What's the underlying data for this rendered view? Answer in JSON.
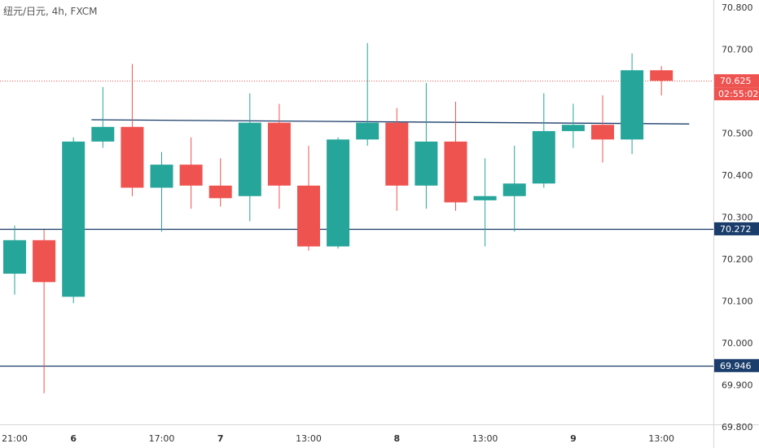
{
  "chart_header": {
    "symbol_label": "纽元/日元, 4h, FXCM"
  },
  "chart_data": {
    "type": "candlestick",
    "timeframe": "4h",
    "ylim": [
      69.8,
      70.8
    ],
    "y_ticks": [
      "70.800",
      "70.700",
      "70.600",
      "70.500",
      "70.400",
      "70.300",
      "70.200",
      "70.100",
      "70.000",
      "69.900",
      "69.800"
    ],
    "x_ticks": [
      {
        "label": "21:00",
        "i": 0
      },
      {
        "label": "6",
        "i": 2,
        "bold": true
      },
      {
        "label": "17:00",
        "i": 5
      },
      {
        "label": "7",
        "i": 7,
        "bold": true
      },
      {
        "label": "13:00",
        "i": 10
      },
      {
        "label": "8",
        "i": 13,
        "bold": true
      },
      {
        "label": "13:00",
        "i": 16
      },
      {
        "label": "9",
        "i": 19,
        "bold": true
      },
      {
        "label": "13:00",
        "i": 22
      }
    ],
    "candles": [
      {
        "o": 70.165,
        "h": 70.28,
        "l": 70.115,
        "c": 70.245
      },
      {
        "o": 70.245,
        "h": 70.27,
        "l": 69.88,
        "c": 70.145
      },
      {
        "o": 70.11,
        "h": 70.49,
        "l": 70.095,
        "c": 70.48
      },
      {
        "o": 70.48,
        "h": 70.61,
        "l": 70.465,
        "c": 70.515
      },
      {
        "o": 70.515,
        "h": 70.665,
        "l": 70.35,
        "c": 70.37
      },
      {
        "o": 70.37,
        "h": 70.455,
        "l": 70.265,
        "c": 70.425
      },
      {
        "o": 70.425,
        "h": 70.49,
        "l": 70.32,
        "c": 70.375
      },
      {
        "o": 70.375,
        "h": 70.44,
        "l": 70.325,
        "c": 70.345
      },
      {
        "o": 70.35,
        "h": 70.595,
        "l": 70.29,
        "c": 70.525
      },
      {
        "o": 70.525,
        "h": 70.57,
        "l": 70.32,
        "c": 70.375
      },
      {
        "o": 70.375,
        "h": 70.47,
        "l": 70.22,
        "c": 70.23
      },
      {
        "o": 70.23,
        "h": 70.49,
        "l": 70.225,
        "c": 70.485
      },
      {
        "o": 70.485,
        "h": 70.715,
        "l": 70.47,
        "c": 70.525
      },
      {
        "o": 70.525,
        "h": 70.56,
        "l": 70.315,
        "c": 70.375
      },
      {
        "o": 70.375,
        "h": 70.62,
        "l": 70.32,
        "c": 70.48
      },
      {
        "o": 70.48,
        "h": 70.575,
        "l": 70.315,
        "c": 70.335
      },
      {
        "o": 70.34,
        "h": 70.44,
        "l": 70.23,
        "c": 70.35
      },
      {
        "o": 70.35,
        "h": 70.47,
        "l": 70.265,
        "c": 70.38
      },
      {
        "o": 70.38,
        "h": 70.595,
        "l": 70.37,
        "c": 70.505
      },
      {
        "o": 70.505,
        "h": 70.57,
        "l": 70.465,
        "c": 70.52
      },
      {
        "o": 70.52,
        "h": 70.59,
        "l": 70.43,
        "c": 70.485
      },
      {
        "o": 70.485,
        "h": 70.69,
        "l": 70.45,
        "c": 70.65
      },
      {
        "o": 70.65,
        "h": 70.66,
        "l": 70.59,
        "c": 70.625
      }
    ],
    "horizontal_lines": [
      {
        "value": 70.272,
        "label": "70.272",
        "color": "#1a3d6b"
      },
      {
        "value": 69.946,
        "label": "69.946",
        "color": "#1a3d6b"
      }
    ],
    "trend_line": {
      "from": {
        "i": 3,
        "value": 70.532
      },
      "to": {
        "i": 23,
        "value": 70.522
      },
      "color": "#1a3d6b"
    },
    "current_price": {
      "value": 70.625,
      "label": "70.625",
      "countdown": "02:55:02",
      "color": "#ef5350"
    },
    "colors": {
      "up": "#26a69a",
      "down": "#ef5350",
      "axis_text": "#333333",
      "line": "#1a3d6b"
    }
  }
}
